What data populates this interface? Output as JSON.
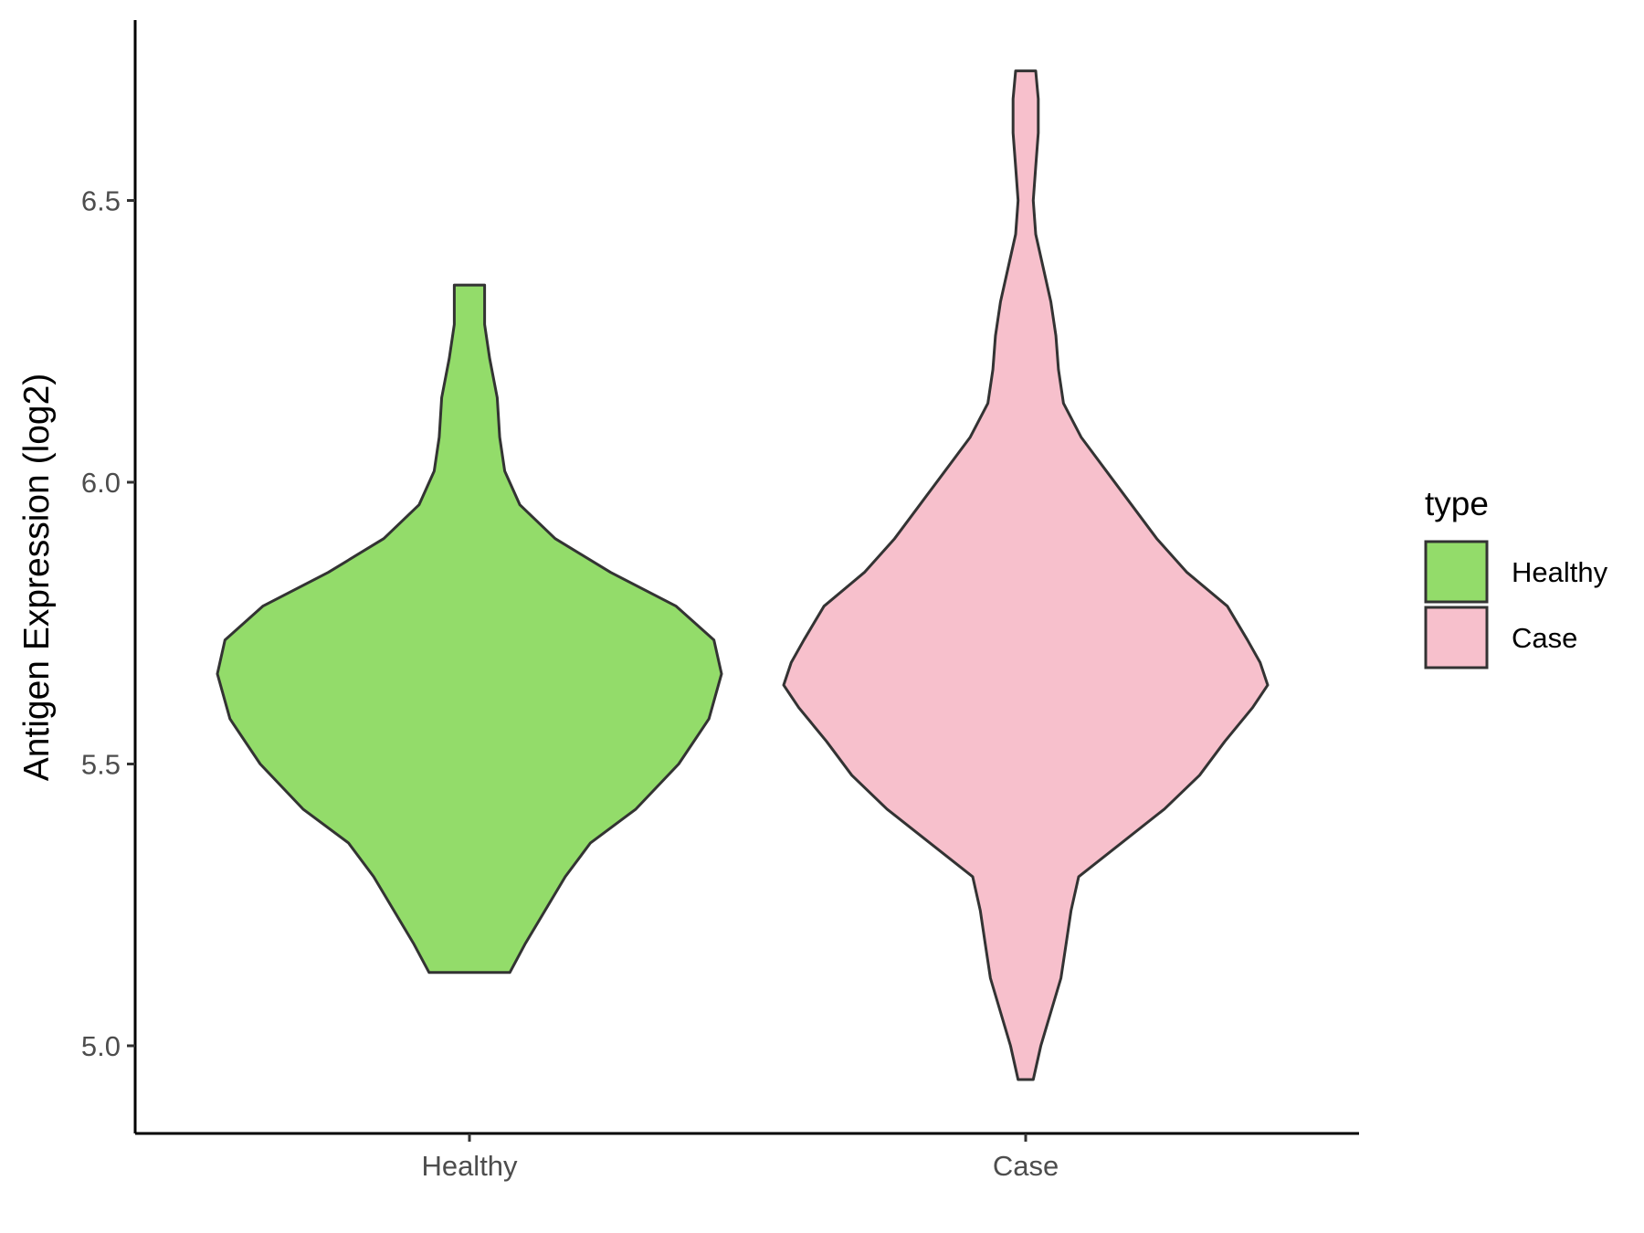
{
  "chart_data": {
    "type": "violin",
    "title": "",
    "xlabel": "",
    "ylabel": "Antigen Expression (log2)",
    "ylim": [
      4.84,
      6.82
    ],
    "yticks": [
      5.0,
      5.5,
      6.0,
      6.5
    ],
    "ytick_labels": [
      "5.0",
      "5.5",
      "6.0",
      "6.5"
    ],
    "categories": [
      "Healthy",
      "Case"
    ],
    "grid": false,
    "legend": {
      "title": "type",
      "position": "right",
      "entries": [
        {
          "label": "Healthy",
          "color": "#93DC6A"
        },
        {
          "label": "Case",
          "color": "#F7C0CC"
        }
      ]
    },
    "series": [
      {
        "name": "Healthy",
        "color": "#93DC6A",
        "min": 5.13,
        "max": 6.35,
        "density_profile": [
          [
            5.13,
            0.16
          ],
          [
            5.18,
            0.22
          ],
          [
            5.24,
            0.3
          ],
          [
            5.3,
            0.38
          ],
          [
            5.36,
            0.48
          ],
          [
            5.42,
            0.66
          ],
          [
            5.5,
            0.83
          ],
          [
            5.58,
            0.95
          ],
          [
            5.66,
            1.0
          ],
          [
            5.72,
            0.97
          ],
          [
            5.78,
            0.82
          ],
          [
            5.84,
            0.56
          ],
          [
            5.9,
            0.34
          ],
          [
            5.96,
            0.2
          ],
          [
            6.02,
            0.14
          ],
          [
            6.08,
            0.12
          ],
          [
            6.15,
            0.11
          ],
          [
            6.22,
            0.08
          ],
          [
            6.28,
            0.06
          ],
          [
            6.35,
            0.06
          ]
        ]
      },
      {
        "name": "Case",
        "color": "#F7C0CC",
        "min": 4.94,
        "max": 6.73,
        "density_profile": [
          [
            4.94,
            0.03
          ],
          [
            5.0,
            0.06
          ],
          [
            5.06,
            0.1
          ],
          [
            5.12,
            0.14
          ],
          [
            5.18,
            0.16
          ],
          [
            5.24,
            0.18
          ],
          [
            5.3,
            0.21
          ],
          [
            5.36,
            0.38
          ],
          [
            5.42,
            0.55
          ],
          [
            5.48,
            0.69
          ],
          [
            5.54,
            0.79
          ],
          [
            5.6,
            0.9
          ],
          [
            5.64,
            0.96
          ],
          [
            5.68,
            0.93
          ],
          [
            5.72,
            0.88
          ],
          [
            5.78,
            0.8
          ],
          [
            5.84,
            0.64
          ],
          [
            5.9,
            0.52
          ],
          [
            5.96,
            0.42
          ],
          [
            6.02,
            0.32
          ],
          [
            6.08,
            0.22
          ],
          [
            6.14,
            0.15
          ],
          [
            6.2,
            0.13
          ],
          [
            6.26,
            0.12
          ],
          [
            6.32,
            0.1
          ],
          [
            6.38,
            0.07
          ],
          [
            6.44,
            0.04
          ],
          [
            6.5,
            0.03
          ],
          [
            6.56,
            0.04
          ],
          [
            6.62,
            0.05
          ],
          [
            6.68,
            0.05
          ],
          [
            6.73,
            0.04
          ]
        ]
      }
    ]
  }
}
